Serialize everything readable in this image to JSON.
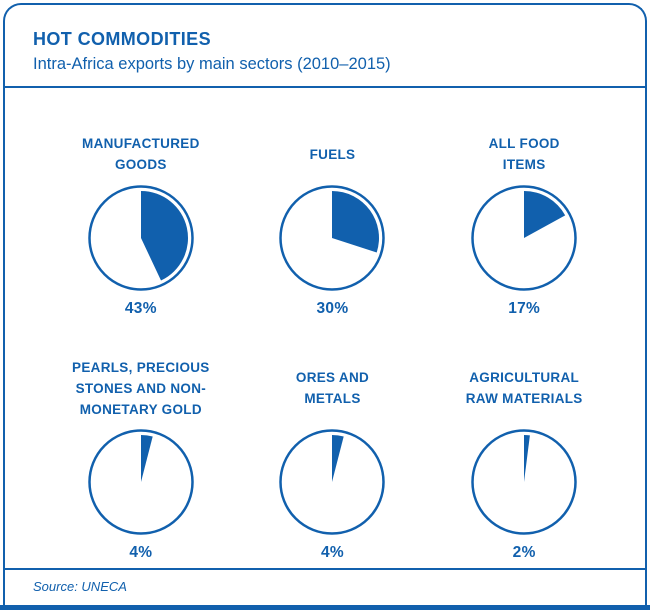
{
  "colors": {
    "accent": "#1160AD",
    "background": "#FFFFFF"
  },
  "header": {
    "title": "HOT COMMODITIES",
    "subtitle": "Intra-Africa exports by main sectors (2010–2015)"
  },
  "footer": {
    "source": "Source: UNECA"
  },
  "chart_data": {
    "type": "pie",
    "title": "HOT COMMODITIES",
    "subtitle": "Intra-Africa exports by main sectors (2010–2015)",
    "unit": "%",
    "categories": [
      "MANUFACTURED GOODS",
      "FUELS",
      "ALL FOOD ITEMS",
      "PEARLS, PRECIOUS STONES AND NON-MONETARY GOLD",
      "ORES AND METALS",
      "AGRICULTURAL RAW MATERIALS"
    ],
    "values": [
      43,
      30,
      17,
      4,
      4,
      2
    ],
    "data_labels": [
      "43%",
      "30%",
      "17%",
      "4%",
      "4%",
      "2%"
    ],
    "source": "Source: UNECA",
    "layout": "six single-slice pies in 2 rows x 3 columns; slices start at 12 o'clock and sweep clockwise; monochrome blue on white",
    "legend": "none"
  },
  "pies": [
    {
      "lines": [
        "MANUFACTURED",
        "GOODS"
      ],
      "pct": "43%",
      "value": 43
    },
    {
      "lines": [
        "FUELS"
      ],
      "pct": "30%",
      "value": 30
    },
    {
      "lines": [
        "ALL FOOD",
        "ITEMS"
      ],
      "pct": "17%",
      "value": 17
    },
    {
      "lines": [
        "PEARLS, PRECIOUS",
        "STONES AND NON-",
        "MONETARY GOLD"
      ],
      "pct": "4%",
      "value": 4
    },
    {
      "lines": [
        "ORES AND",
        "METALS"
      ],
      "pct": "4%",
      "value": 4
    },
    {
      "lines": [
        "AGRICULTURAL",
        "RAW MATERIALS"
      ],
      "pct": "2%",
      "value": 2
    }
  ]
}
